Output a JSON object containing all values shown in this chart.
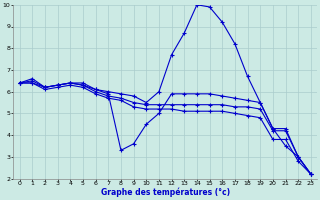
{
  "title": "Graphe des températures (°c)",
  "bg_color": "#cceae4",
  "grid_color": "#aacccc",
  "line_color": "#0000cc",
  "xlim": [
    -0.5,
    23.5
  ],
  "ylim": [
    2,
    10
  ],
  "xticks": [
    0,
    1,
    2,
    3,
    4,
    5,
    6,
    7,
    8,
    9,
    10,
    11,
    12,
    13,
    14,
    15,
    16,
    17,
    18,
    19,
    20,
    21,
    22,
    23
  ],
  "yticks": [
    2,
    3,
    4,
    5,
    6,
    7,
    8,
    9,
    10
  ],
  "series": [
    {
      "x": [
        0,
        1,
        2,
        3,
        4,
        5,
        6,
        7,
        8,
        9,
        10,
        11,
        12,
        13,
        14,
        15,
        16,
        17,
        18,
        19,
        20,
        21,
        22,
        23
      ],
      "y": [
        6.4,
        6.6,
        6.2,
        6.3,
        6.4,
        6.4,
        6.1,
        6.0,
        5.9,
        5.8,
        5.5,
        6.0,
        7.7,
        8.7,
        10.0,
        9.9,
        9.2,
        8.2,
        6.7,
        5.5,
        4.3,
        3.5,
        3.0,
        2.2
      ]
    },
    {
      "x": [
        0,
        1,
        2,
        3,
        4,
        5,
        6,
        7,
        8,
        9,
        10,
        11,
        12,
        13,
        14,
        15,
        16,
        17,
        18,
        19,
        20,
        21,
        22,
        23
      ],
      "y": [
        6.4,
        6.5,
        6.2,
        6.3,
        6.4,
        6.3,
        6.1,
        5.9,
        3.3,
        3.6,
        4.5,
        5.0,
        5.9,
        5.9,
        5.9,
        5.9,
        5.8,
        5.7,
        5.6,
        5.5,
        4.3,
        4.3,
        3.0,
        2.2
      ]
    },
    {
      "x": [
        0,
        1,
        2,
        3,
        4,
        5,
        6,
        7,
        8,
        9,
        10,
        11,
        12,
        13,
        14,
        15,
        16,
        17,
        18,
        19,
        20,
        21,
        22,
        23
      ],
      "y": [
        6.4,
        6.4,
        6.2,
        6.3,
        6.4,
        6.3,
        6.0,
        5.8,
        5.7,
        5.5,
        5.4,
        5.4,
        5.4,
        5.4,
        5.4,
        5.4,
        5.4,
        5.3,
        5.3,
        5.2,
        4.2,
        4.2,
        3.0,
        2.2
      ]
    },
    {
      "x": [
        0,
        1,
        2,
        3,
        4,
        5,
        6,
        7,
        8,
        9,
        10,
        11,
        12,
        13,
        14,
        15,
        16,
        17,
        18,
        19,
        20,
        21,
        22,
        23
      ],
      "y": [
        6.4,
        6.4,
        6.1,
        6.2,
        6.3,
        6.2,
        5.9,
        5.7,
        5.6,
        5.3,
        5.2,
        5.2,
        5.2,
        5.1,
        5.1,
        5.1,
        5.1,
        5.0,
        4.9,
        4.8,
        3.8,
        3.8,
        2.8,
        2.2
      ]
    }
  ]
}
